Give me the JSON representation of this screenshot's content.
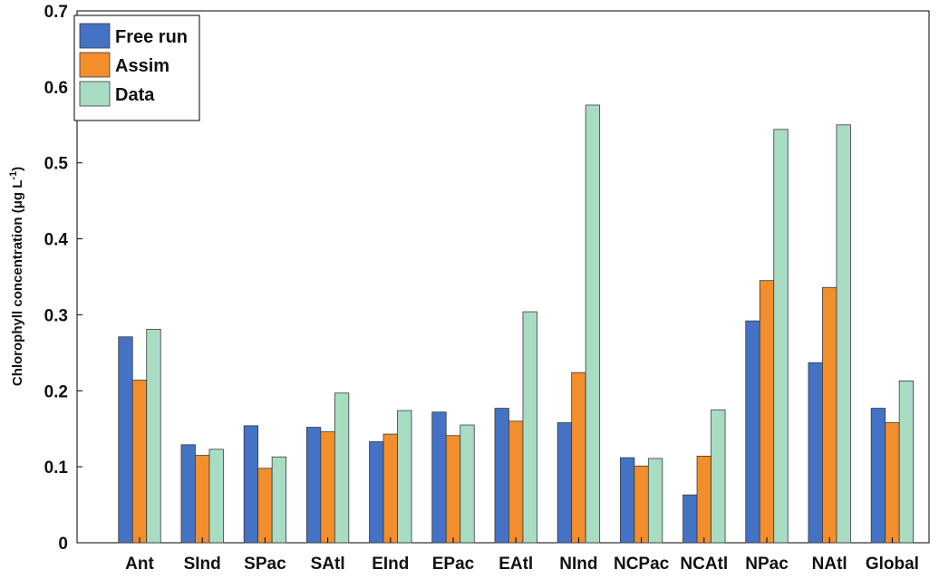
{
  "chart_data": {
    "type": "bar",
    "title": "",
    "xlabel": "",
    "ylabel": "Chlorophyll concentration (μg L",
    "ylabel_sup": "-1",
    "ylabel_close": ")",
    "ylim": [
      0,
      0.7
    ],
    "yticks": [
      "0",
      "0.1",
      "0.2",
      "0.3",
      "0.4",
      "0.5",
      "0.6",
      "0.7"
    ],
    "categories": [
      "Ant",
      "SInd",
      "SPac",
      "SAtl",
      "EInd",
      "EPac",
      "EAtl",
      "NInd",
      "NCPac",
      "NCAtl",
      "NPac",
      "NAtl",
      "Global"
    ],
    "series": [
      {
        "name": "Free run",
        "color": "#4472C4",
        "values": [
          0.271,
          0.129,
          0.154,
          0.152,
          0.133,
          0.172,
          0.177,
          0.158,
          0.112,
          0.063,
          0.292,
          0.237,
          0.177
        ]
      },
      {
        "name": "Assim",
        "color": "#F28E2B",
        "values": [
          0.214,
          0.115,
          0.098,
          0.146,
          0.143,
          0.141,
          0.16,
          0.224,
          0.101,
          0.114,
          0.345,
          0.336,
          0.158
        ]
      },
      {
        "name": "Data",
        "color": "#A8DCC3",
        "values": [
          0.281,
          0.123,
          0.113,
          0.197,
          0.174,
          0.155,
          0.304,
          0.576,
          0.111,
          0.175,
          0.544,
          0.55,
          0.213
        ]
      }
    ],
    "grid": false,
    "legend_position": "top-left"
  }
}
